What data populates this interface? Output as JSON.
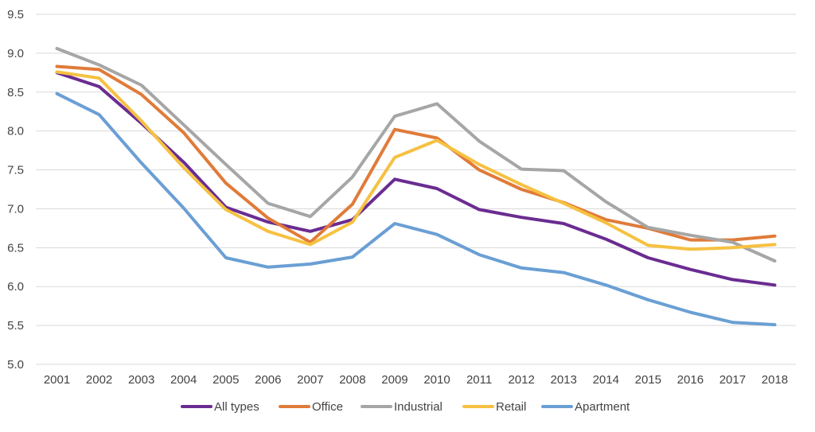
{
  "chart_data": {
    "type": "line",
    "title": "",
    "xlabel": "",
    "ylabel": "",
    "x": [
      "2001",
      "2002",
      "2003",
      "2004",
      "2005",
      "2006",
      "2007",
      "2008",
      "2009",
      "2010",
      "2011",
      "2012",
      "2013",
      "2014",
      "2015",
      "2016",
      "2017",
      "2018"
    ],
    "ylim": [
      5.0,
      9.5
    ],
    "yticks": [
      "5.0",
      "5.5",
      "6.0",
      "6.5",
      "7.0",
      "7.5",
      "8.0",
      "8.5",
      "9.0",
      "9.5"
    ],
    "grid": "horizontal",
    "legend": "bottom",
    "series": [
      {
        "name": "All types",
        "color": "#6a2c91",
        "values": [
          8.75,
          8.57,
          8.1,
          7.6,
          7.02,
          6.83,
          6.71,
          6.86,
          7.38,
          7.26,
          6.99,
          6.89,
          6.81,
          6.61,
          6.37,
          6.22,
          6.09,
          6.02
        ]
      },
      {
        "name": "Office",
        "color": "#e07b39",
        "values": [
          8.83,
          8.79,
          8.47,
          7.98,
          7.33,
          6.88,
          6.57,
          7.06,
          8.02,
          7.91,
          7.5,
          7.25,
          7.08,
          6.86,
          6.75,
          6.6,
          6.6,
          6.65
        ]
      },
      {
        "name": "Industrial",
        "color": "#a6a6a6",
        "values": [
          9.06,
          8.85,
          8.59,
          8.08,
          7.57,
          7.07,
          6.9,
          7.41,
          8.19,
          8.35,
          7.87,
          7.51,
          7.49,
          7.09,
          6.76,
          6.66,
          6.57,
          6.33
        ]
      },
      {
        "name": "Retail",
        "color": "#f6c142",
        "values": [
          8.76,
          8.68,
          8.13,
          7.53,
          6.99,
          6.71,
          6.54,
          6.83,
          7.66,
          7.88,
          7.57,
          7.31,
          7.07,
          6.82,
          6.53,
          6.48,
          6.5,
          6.54
        ]
      },
      {
        "name": "Apartment",
        "color": "#6a9fd4",
        "values": [
          8.48,
          8.21,
          7.59,
          7.01,
          6.37,
          6.25,
          6.29,
          6.38,
          6.81,
          6.67,
          6.41,
          6.24,
          6.18,
          6.02,
          5.83,
          5.67,
          5.54,
          5.51
        ]
      }
    ]
  }
}
